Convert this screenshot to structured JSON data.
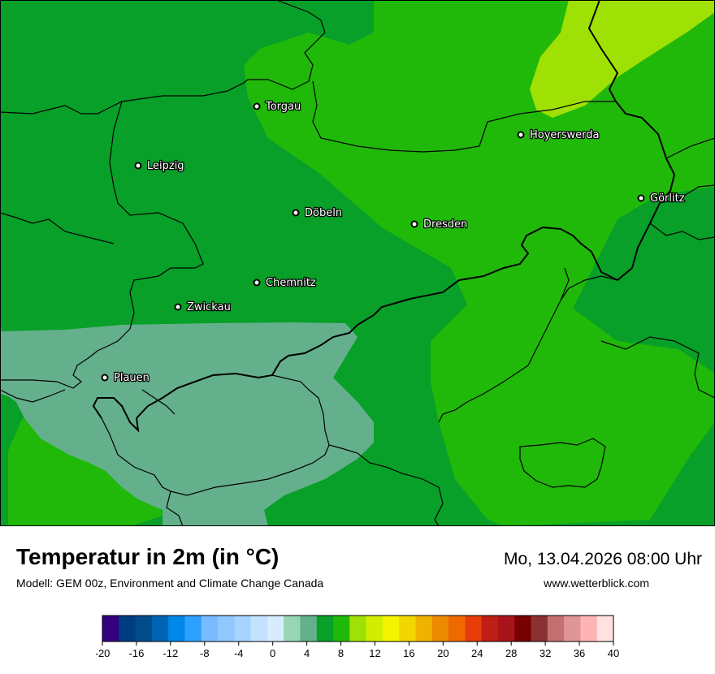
{
  "map": {
    "cities": [
      {
        "name": "Torgau"
      },
      {
        "name": "Hoyerswerda"
      },
      {
        "name": "Leipzig"
      },
      {
        "name": "Döbeln"
      },
      {
        "name": "Dresden"
      },
      {
        "name": "Görlitz"
      },
      {
        "name": "Chemnitz"
      },
      {
        "name": "Zwickau"
      },
      {
        "name": "Plauen"
      }
    ],
    "region_colors": {
      "c2_4": "#64b08c",
      "c6_8": "#08a028",
      "c8_10": "#20b90a",
      "c10_12": "#a0e105"
    }
  },
  "title": "Temperatur in 2m (in °C)",
  "subtitle": "Modell: GEM 00z, Environment and Climate Change Canada",
  "datetime": "Mo, 13.04.2026 08:00 Uhr",
  "website": "www.wetterblick.com",
  "legend": {
    "ticks": [
      "-20",
      "-16",
      "-12",
      "-8",
      "-4",
      "0",
      "4",
      "8",
      "12",
      "16",
      "20",
      "24",
      "28",
      "32",
      "36",
      "40"
    ],
    "colors": [
      "#34007f",
      "#003c82",
      "#004c8a",
      "#0064b4",
      "#0088e8",
      "#2ea0ff",
      "#78bcff",
      "#8ec8ff",
      "#a6d4ff",
      "#c4e2ff",
      "#d8ecff",
      "#96d6b4",
      "#64b08c",
      "#08a028",
      "#20b90a",
      "#a0e105",
      "#d2ee00",
      "#f4f400",
      "#f2d600",
      "#f0b200",
      "#ee8a00",
      "#ee6a00",
      "#e63c0a",
      "#be1e14",
      "#a8141a",
      "#780000",
      "#8a3232",
      "#c27070",
      "#e09696",
      "#ffb4b4",
      "#ffe1e1"
    ]
  }
}
